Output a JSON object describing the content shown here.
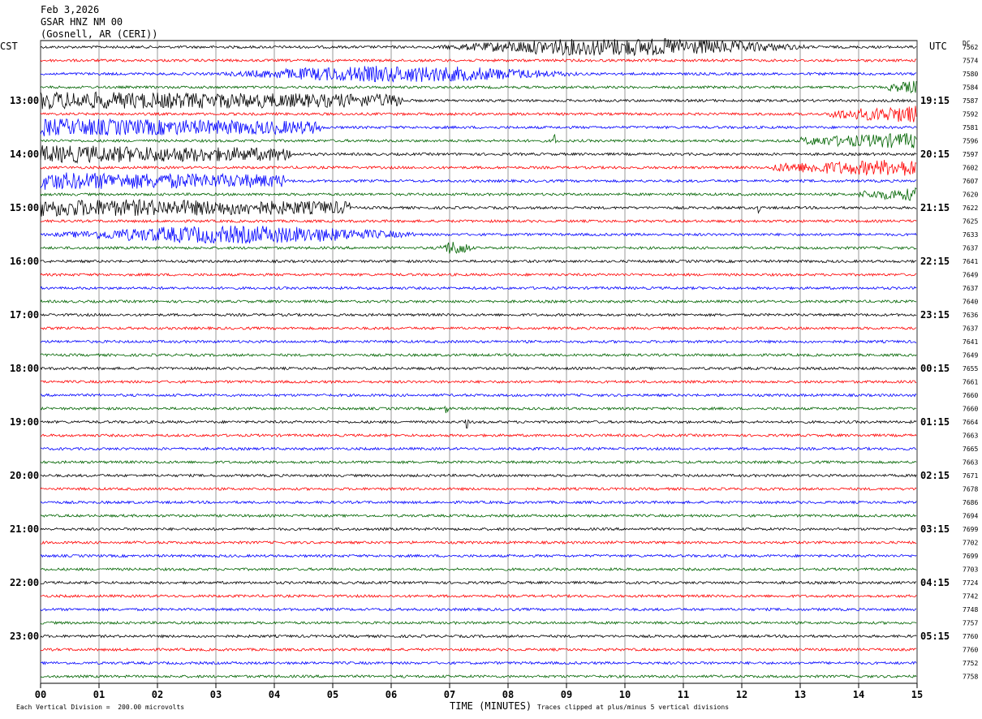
{
  "header": {
    "date": "Feb 3,2026",
    "station": "GSAR HNZ NM 00",
    "location": "(Gosnell, AR (CERI))"
  },
  "left_zone": "CST",
  "right_zone": "UTC",
  "dc_label": "DC",
  "chart_data": {
    "type": "line",
    "title": "",
    "xlabel": "TIME (MINUTES)",
    "ylabel": "",
    "xlim": [
      0,
      15
    ],
    "x_ticks": [
      "00",
      "01",
      "02",
      "03",
      "04",
      "05",
      "06",
      "07",
      "08",
      "09",
      "10",
      "11",
      "12",
      "13",
      "14",
      "15"
    ],
    "left_hour_labels": [
      "13:00",
      "14:00",
      "15:00",
      "16:00",
      "17:00",
      "18:00",
      "19:00",
      "20:00",
      "21:00",
      "22:00",
      "23:00"
    ],
    "right_hour_labels": [
      "19:15",
      "20:15",
      "21:15",
      "22:15",
      "23:15",
      "00:15",
      "01:15",
      "02:15",
      "03:15",
      "04:15",
      "05:15"
    ],
    "trace_colors": [
      "#000000",
      "#ff0000",
      "#0000ff",
      "#006400"
    ],
    "dc_values": [
      7562,
      7574,
      7580,
      7584,
      7587,
      7592,
      7581,
      7596,
      7597,
      7602,
      7607,
      7620,
      7622,
      7625,
      7633,
      7637,
      7641,
      7649,
      7637,
      7640,
      7636,
      7637,
      7641,
      7649,
      7655,
      7661,
      7660,
      7660,
      7664,
      7663,
      7665,
      7663,
      7671,
      7678,
      7686,
      7694,
      7699,
      7702,
      7699,
      7703,
      7724,
      7742,
      7748,
      7757,
      7760,
      7760,
      7752,
      7758
    ],
    "events": [
      {
        "row": 0,
        "start": 6.8,
        "end": 13.2,
        "amp": 1.0
      },
      {
        "row": 2,
        "start": 3.1,
        "end": 9.2,
        "amp": 0.9
      },
      {
        "row": 3,
        "start": 14.5,
        "end": 15.0,
        "amp": 0.7
      },
      {
        "row": 4,
        "start": 0.0,
        "end": 6.2,
        "amp": 1.0
      },
      {
        "row": 5,
        "start": 13.5,
        "end": 15.0,
        "amp": 1.0
      },
      {
        "row": 6,
        "start": 0.0,
        "end": 4.8,
        "amp": 1.0
      },
      {
        "row": 7,
        "start": 13.0,
        "end": 15.0,
        "amp": 0.9
      },
      {
        "row": 8,
        "start": 0.0,
        "end": 4.3,
        "amp": 1.0
      },
      {
        "row": 9,
        "start": 12.5,
        "end": 15.0,
        "amp": 1.0
      },
      {
        "row": 10,
        "start": 0.0,
        "end": 4.2,
        "amp": 1.0
      },
      {
        "row": 11,
        "start": 14.0,
        "end": 15.0,
        "amp": 0.7
      },
      {
        "row": 12,
        "start": 0.0,
        "end": 5.3,
        "amp": 1.0
      },
      {
        "row": 14,
        "start": 0.2,
        "end": 6.5,
        "amp": 1.0
      },
      {
        "row": 15,
        "start": 6.8,
        "end": 7.4,
        "amp": 0.8
      }
    ],
    "spikes": [
      {
        "row": 7,
        "x": 8.8,
        "amp": 10
      },
      {
        "row": 12,
        "x": 12.3,
        "amp": 9
      },
      {
        "row": 27,
        "x": 6.95,
        "amp": 6
      },
      {
        "row": 28,
        "x": 7.3,
        "amp": 8
      }
    ]
  },
  "footer": {
    "scale_note": "Each Vertical Division =  200.00 microvolts",
    "clip_note": "Traces clipped at plus/minus 5 vertical divisions"
  }
}
